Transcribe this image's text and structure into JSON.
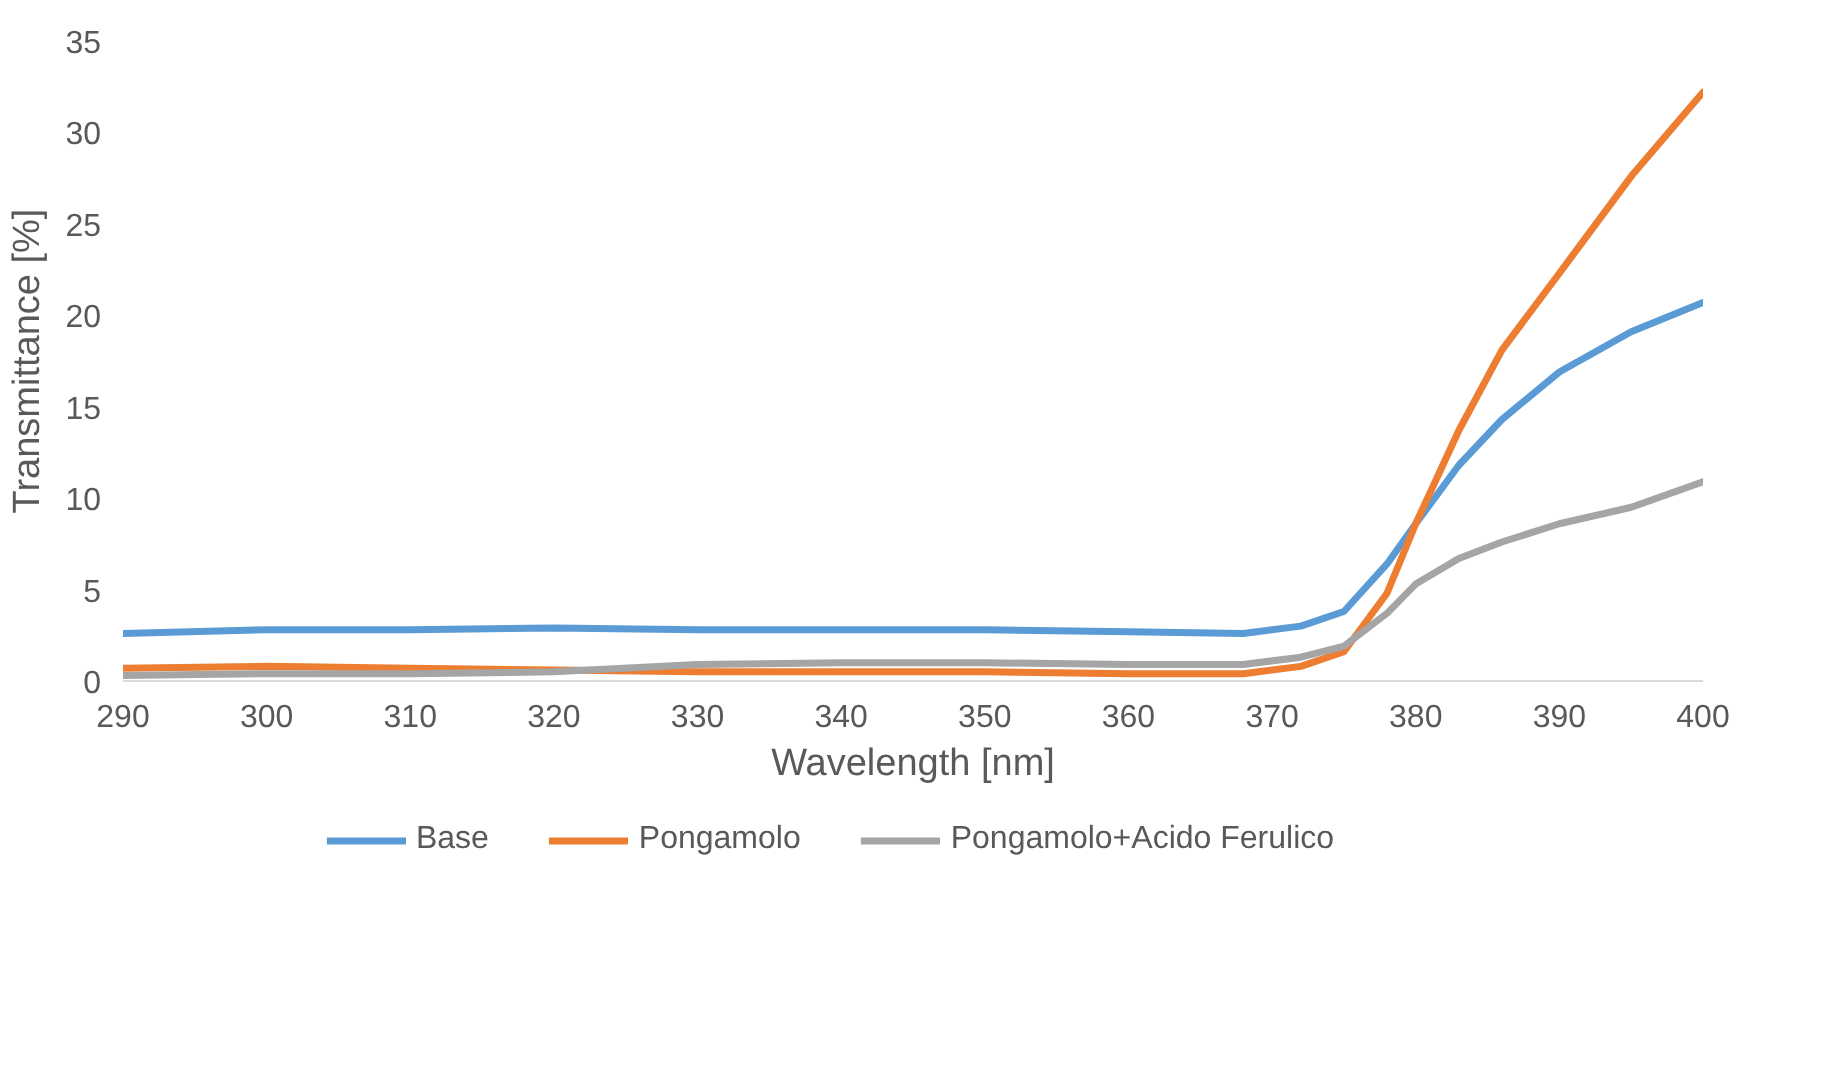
{
  "chart_data": {
    "type": "line",
    "xlabel": "Wavelength [nm]",
    "ylabel": "Transmittance [%]",
    "xlim": [
      290,
      400
    ],
    "ylim": [
      0,
      35
    ],
    "xticks": [
      290,
      300,
      310,
      320,
      330,
      340,
      350,
      360,
      370,
      380,
      390,
      400
    ],
    "yticks": [
      0,
      5,
      10,
      15,
      20,
      25,
      30,
      35
    ],
    "grid": false,
    "legend": "bottom",
    "marker": "none",
    "line_style": "solid",
    "series": [
      {
        "name": "Base",
        "color": "#5b9bd5",
        "x": [
          290,
          300,
          310,
          320,
          330,
          340,
          350,
          360,
          368,
          372,
          375,
          378,
          380,
          383,
          386,
          390,
          395,
          400
        ],
        "values": [
          2.6,
          2.8,
          2.8,
          2.9,
          2.8,
          2.8,
          2.8,
          2.7,
          2.6,
          3.0,
          3.8,
          6.4,
          8.6,
          11.8,
          14.3,
          16.9,
          19.1,
          20.7
        ]
      },
      {
        "name": "Pongamolo",
        "color": "#ed7d31",
        "x": [
          290,
          300,
          310,
          320,
          330,
          340,
          350,
          360,
          368,
          372,
          375,
          378,
          380,
          383,
          386,
          390,
          395,
          400
        ],
        "values": [
          0.7,
          0.8,
          0.7,
          0.6,
          0.5,
          0.5,
          0.5,
          0.4,
          0.4,
          0.8,
          1.6,
          4.8,
          8.6,
          13.7,
          18.1,
          22.3,
          27.6,
          32.2
        ]
      },
      {
        "name": "Pongamolo+Acido Ferulico",
        "color": "#a5a5a5",
        "x": [
          290,
          300,
          310,
          320,
          330,
          340,
          350,
          360,
          368,
          372,
          375,
          378,
          380,
          383,
          386,
          390,
          395,
          400
        ],
        "values": [
          0.3,
          0.4,
          0.4,
          0.5,
          0.9,
          1.0,
          1.0,
          0.9,
          0.9,
          1.3,
          1.9,
          3.7,
          5.3,
          6.7,
          7.6,
          8.6,
          9.5,
          10.9
        ]
      }
    ]
  }
}
